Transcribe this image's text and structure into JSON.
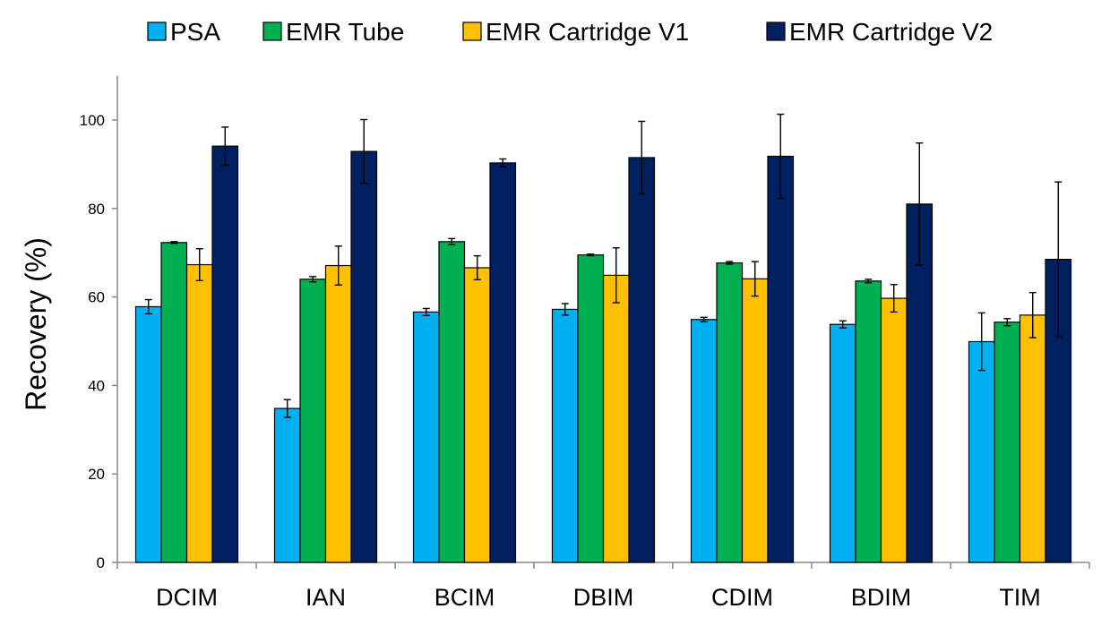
{
  "chart_data": {
    "type": "bar",
    "title": "",
    "xlabel": "",
    "ylabel": "Recovery (%)",
    "ylim": [
      0,
      110
    ],
    "yticks": [
      0,
      20,
      40,
      60,
      80,
      100
    ],
    "legend": "top",
    "grid": false,
    "categories": [
      "DCIM",
      "IAN",
      "BCIM",
      "DBIM",
      "CDIM",
      "BDIM",
      "TIM"
    ],
    "series": [
      {
        "name": "PSA",
        "color": "#00b0f0",
        "values": [
          57.8,
          34.8,
          56.6,
          57.2,
          54.9,
          53.8,
          49.9
        ],
        "errors": [
          1.6,
          2.0,
          0.8,
          1.3,
          0.5,
          0.8,
          6.5
        ]
      },
      {
        "name": "EMR Tube",
        "color": "#00b050",
        "values": [
          72.3,
          64.0,
          72.5,
          69.5,
          67.7,
          63.6,
          54.3
        ],
        "errors": [
          0.2,
          0.6,
          0.7,
          0.2,
          0.3,
          0.4,
          0.8
        ]
      },
      {
        "name": "EMR Cartridge V1",
        "color": "#ffc000",
        "values": [
          67.3,
          67.1,
          66.6,
          64.9,
          64.1,
          59.7,
          55.9
        ],
        "errors": [
          3.6,
          4.4,
          2.7,
          6.2,
          3.9,
          3.1,
          5.1
        ]
      },
      {
        "name": "EMR Cartridge V2",
        "color": "#002060",
        "values": [
          94.1,
          92.9,
          90.3,
          91.5,
          91.8,
          81.0,
          68.5
        ],
        "errors": [
          4.3,
          7.2,
          0.9,
          8.2,
          9.5,
          13.8,
          17.5
        ]
      }
    ]
  }
}
